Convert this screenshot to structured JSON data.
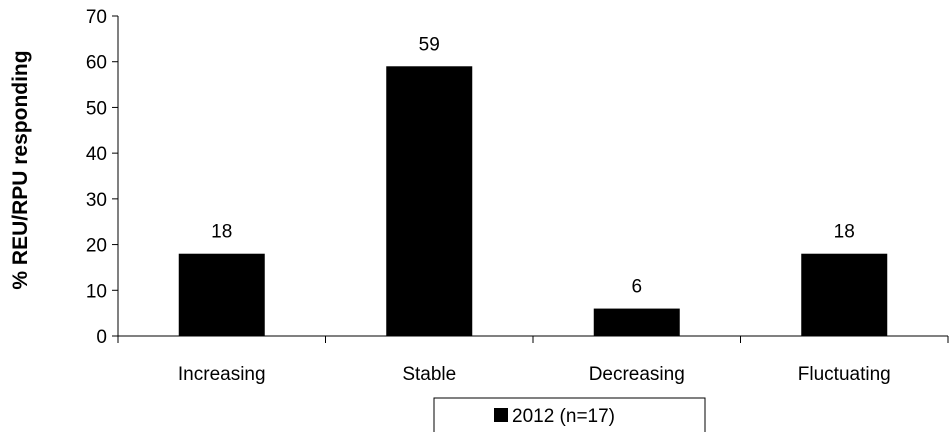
{
  "chart_data": {
    "type": "bar",
    "categories": [
      "Increasing",
      "Stable",
      "Decreasing",
      "Fluctuating"
    ],
    "series": [
      {
        "name": "2012 (n=17)",
        "values": [
          18,
          59,
          6,
          18
        ],
        "color": "#000000"
      }
    ],
    "data_labels": [
      "18",
      "59",
      "6",
      "18"
    ],
    "xlabel": "",
    "ylabel": "% REU/RPU responding",
    "ylim": [
      0,
      70
    ],
    "yticks": [
      0,
      10,
      20,
      30,
      40,
      50,
      60,
      70
    ],
    "grid": false,
    "legend_position": "bottom-center"
  }
}
